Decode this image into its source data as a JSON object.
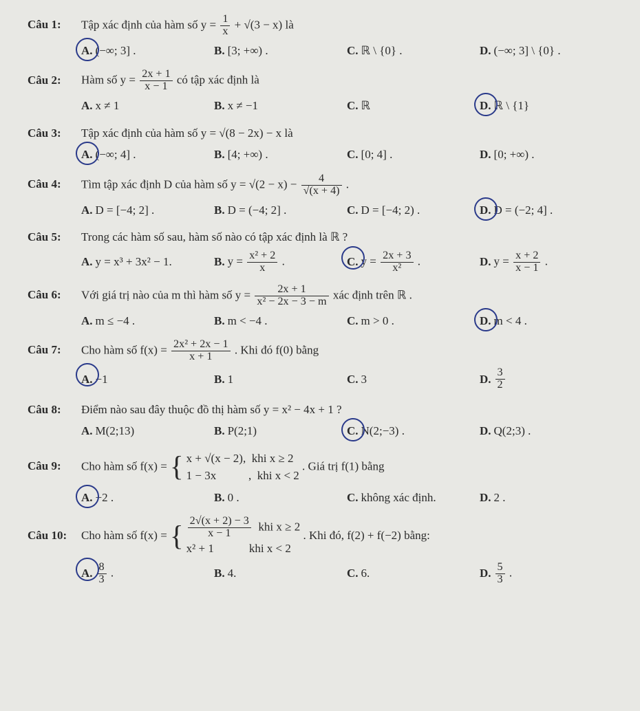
{
  "questions": [
    {
      "label": "Câu 1:",
      "text_pre": "Tập xác định của hàm số  y = ",
      "text_post": " là",
      "frac_num": "1",
      "frac_den": "x",
      "plus_sqrt": "3 − x",
      "opts": [
        {
          "letter": "A.",
          "text": "(−∞; 3] .",
          "circled": true
        },
        {
          "letter": "B.",
          "text": "[3; +∞) .",
          "circled": false
        },
        {
          "letter": "C.",
          "text": "ℝ \\ {0} .",
          "circled": false
        },
        {
          "letter": "D.",
          "text": "(−∞; 3] \\ {0} .",
          "circled": false
        }
      ]
    },
    {
      "label": "Câu 2:",
      "text_pre": "Hàm số  y = ",
      "text_post": "  có tập xác định là",
      "frac_num": "2x + 1",
      "frac_den": "x − 1",
      "opts": [
        {
          "letter": "A.",
          "text": "x ≠ 1",
          "circled": false
        },
        {
          "letter": "B.",
          "text": "x ≠ −1",
          "circled": false
        },
        {
          "letter": "C.",
          "text": "ℝ",
          "circled": false
        },
        {
          "letter": "D.",
          "text": "ℝ \\ {1}",
          "circled": true
        }
      ]
    },
    {
      "label": "Câu 3:",
      "text_full": "Tập xác định của hàm số  y = √(8 − 2x) − x  là",
      "opts": [
        {
          "letter": "A.",
          "text": "(−∞; 4] .",
          "circled": true
        },
        {
          "letter": "B.",
          "text": "[4; +∞) .",
          "circled": false
        },
        {
          "letter": "C.",
          "text": "[0; 4] .",
          "circled": false
        },
        {
          "letter": "D.",
          "text": "[0; +∞) .",
          "circled": false
        }
      ]
    },
    {
      "label": "Câu 4:",
      "text_pre": "Tìm tập xác định D của hàm số  y = √(2 − x) − ",
      "text_post": " .",
      "frac_num": "4",
      "frac_den": "√(x + 4)",
      "opts": [
        {
          "letter": "A.",
          "text": "D = [−4; 2] .",
          "circled": false
        },
        {
          "letter": "B.",
          "text": "D = (−4; 2] .",
          "circled": false
        },
        {
          "letter": "C.",
          "text": "D = [−4; 2) .",
          "circled": false
        },
        {
          "letter": "D.",
          "text": "D = (−2; 4] .",
          "circled": true
        }
      ]
    },
    {
      "label": "Câu 5:",
      "text_full": "Trong các hàm số sau, hàm số nào có tập xác định là ℝ ?",
      "opts": [
        {
          "letter": "A.",
          "text": "y = x³ + 3x² − 1.",
          "circled": false
        },
        {
          "letter": "B.",
          "html": "y = <span class='frac'><span class='num'>x² + 2</span><span class='den'>x</span></span> .",
          "circled": false
        },
        {
          "letter": "C.",
          "html": "y = <span class='frac'><span class='num'>2x + 3</span><span class='den'>x²</span></span> .",
          "circled": true
        },
        {
          "letter": "D.",
          "html": "y = <span class='frac'><span class='num'>x + 2</span><span class='den'>x − 1</span></span> .",
          "circled": false
        }
      ]
    },
    {
      "label": "Câu 6:",
      "text_pre": "Với giá trị nào của m thì hàm số  y = ",
      "text_post": "  xác định trên ℝ .",
      "frac_num": "2x + 1",
      "frac_den": "x² − 2x − 3 − m",
      "opts": [
        {
          "letter": "A.",
          "text": "m ≤ −4 .",
          "circled": false
        },
        {
          "letter": "B.",
          "text": "m < −4 .",
          "circled": false
        },
        {
          "letter": "C.",
          "text": "m > 0 .",
          "circled": false
        },
        {
          "letter": "D.",
          "text": "m < 4 .",
          "circled": true
        }
      ]
    },
    {
      "label": "Câu 7:",
      "text_pre": "Cho hàm số  f(x) = ",
      "text_post": " . Khi đó f(0) bằng",
      "frac_num": "2x² + 2x − 1",
      "frac_den": "x + 1",
      "opts": [
        {
          "letter": "A.",
          "text": "−1",
          "circled": true
        },
        {
          "letter": "B.",
          "text": "1",
          "circled": false
        },
        {
          "letter": "C.",
          "text": "3",
          "circled": false
        },
        {
          "letter": "D.",
          "html": "<span class='frac'><span class='num'>3</span><span class='den'>2</span></span>",
          "circled": false
        }
      ]
    },
    {
      "label": "Câu 8:",
      "text_full": "Điểm nào sau đây thuộc đồ thị hàm số  y = x² − 4x + 1 ?",
      "opts": [
        {
          "letter": "A.",
          "text": "M(2;13)",
          "circled": false
        },
        {
          "letter": "B.",
          "text": "P(2;1)",
          "circled": false
        },
        {
          "letter": "C.",
          "text": "N(2;−3) .",
          "circled": true
        },
        {
          "letter": "D.",
          "text": "Q(2;3) .",
          "circled": false
        }
      ]
    },
    {
      "label": "Câu 9:",
      "text_pre": "Cho hàm số  f(x) = ",
      "piece_top": "x + √(x − 2),  khi x ≥ 2",
      "piece_bot": "1 − 3x           ,  khi x < 2",
      "text_post": " . Giá trị f(1) bằng",
      "opts": [
        {
          "letter": "A.",
          "text": "−2 .",
          "circled": true
        },
        {
          "letter": "B.",
          "text": "0 .",
          "circled": false
        },
        {
          "letter": "C.",
          "text": "không xác định.",
          "circled": false
        },
        {
          "letter": "D.",
          "text": "2 .",
          "circled": false
        }
      ]
    },
    {
      "label": "Câu 10:",
      "text_pre": "Cho hàm số  f(x) = ",
      "piece_top_html": "<span class='frac'><span class='num'>2√(x + 2) − 3</span><span class='den'>x − 1</span></span>&nbsp;&nbsp;khi x ≥ 2",
      "piece_bot": "x² + 1            khi x < 2",
      "text_post": " . Khi đó, f(2) + f(−2) bằng:",
      "opts": [
        {
          "letter": "A.",
          "html": "<span class='frac'><span class='num'>8</span><span class='den'>3</span></span> .",
          "circled": true
        },
        {
          "letter": "B.",
          "text": "4.",
          "circled": false
        },
        {
          "letter": "C.",
          "text": "6.",
          "circled": false
        },
        {
          "letter": "D.",
          "html": "<span class='frac'><span class='num'>5</span><span class='den'>3</span></span> .",
          "circled": false
        }
      ]
    }
  ]
}
